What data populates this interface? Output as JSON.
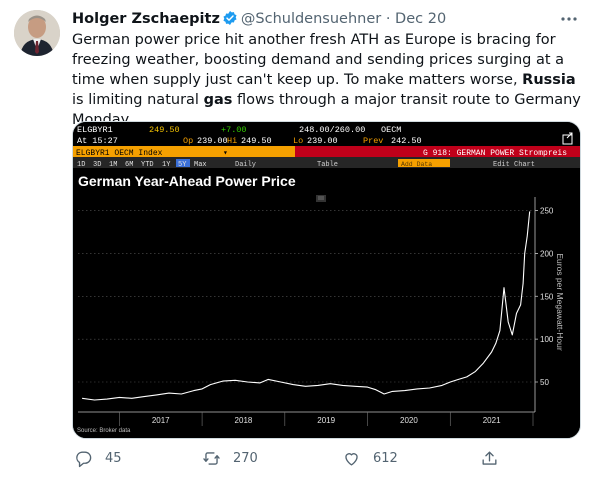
{
  "tweet": {
    "author_name": "Holger Zschaepitz",
    "handle": "@Schuldensuehner",
    "separator": "·",
    "date": "Dec 20",
    "text_part1": "German power price hit another fresh ATH as Europe is bracing for freezing weather, boosting demand and sending prices surging at a time when supply just can't keep up. To make matters worse, ",
    "text_bold1": "Russia",
    "text_part2": " is limiting natural ",
    "text_bold2": "gas",
    "text_part3": " flows through a major transit route to Germany Monday.",
    "verified_icon": "verified-badge-icon",
    "more_icon": "more-options-icon"
  },
  "terminal": {
    "row1": {
      "ticker": "ELGBYR1",
      "last": "249.50",
      "change": "+7.00",
      "bidask": "248.00/260.00",
      "code": "OECM"
    },
    "row2": {
      "at": "At 15:27",
      "op_label": "Op",
      "op": "239.00",
      "hi_label": "Hi",
      "hi": "249.50",
      "lo_label": "Lo",
      "lo": "239.00",
      "prev_label": "Prev",
      "prev": "242.50"
    },
    "row3": {
      "index": "ELGBYR1 OECM Index",
      "page": "G 918: GERMAN POWER Strompreis"
    },
    "row4": {
      "periods": [
        "1D",
        "3D",
        "1M",
        "6M",
        "YTD",
        "1Y",
        "5Y",
        "Max"
      ],
      "active_period": "5Y",
      "freq": "Daily",
      "table": "Table",
      "data_field": "Add Data",
      "edit": "Edit Chart"
    },
    "source": "Source: Broker data"
  },
  "chart_data": {
    "type": "line",
    "title": "German Year-Ahead Power Price",
    "ylabel": "Euros per Megawatt-Hour",
    "ylim": [
      15,
      260
    ],
    "yticks": [
      50,
      100,
      150,
      200,
      250
    ],
    "xticks": [
      "2017",
      "2018",
      "2019",
      "2020",
      "2021"
    ],
    "xlim": [
      2016.5,
      2022.0
    ],
    "line_color": "#ffffff",
    "series": [
      {
        "x": [
          2016.55,
          2016.7,
          2016.85,
          2017.0,
          2017.15,
          2017.3,
          2017.45,
          2017.6,
          2017.75,
          2017.9,
          2018.0,
          2018.1,
          2018.25,
          2018.4,
          2018.55,
          2018.7,
          2018.8,
          2018.95,
          2019.1,
          2019.25,
          2019.4,
          2019.55,
          2019.7,
          2019.85,
          2020.0,
          2020.1,
          2020.2,
          2020.3,
          2020.45,
          2020.6,
          2020.75,
          2020.9,
          2021.0,
          2021.1,
          2021.2,
          2021.3,
          2021.4,
          2021.5,
          2021.55,
          2021.6,
          2021.65,
          2021.7,
          2021.75,
          2021.8,
          2021.85,
          2021.88,
          2021.9,
          2021.93,
          2021.96
        ],
        "values": [
          31,
          29,
          30,
          32,
          31,
          33,
          35,
          37,
          36,
          40,
          42,
          47,
          51,
          52,
          50,
          49,
          53,
          50,
          47,
          45,
          46,
          48,
          46,
          45,
          44,
          41,
          36,
          39,
          40,
          42,
          43,
          46,
          50,
          53,
          56,
          62,
          72,
          85,
          95,
          110,
          160,
          120,
          105,
          130,
          140,
          165,
          200,
          220,
          249
        ]
      }
    ]
  },
  "actions": {
    "reply_count": "45",
    "retweet_count": "270",
    "like_count": "612",
    "reply_icon": "reply-icon",
    "retweet_icon": "retweet-icon",
    "like_icon": "heart-icon",
    "share_icon": "share-icon"
  }
}
